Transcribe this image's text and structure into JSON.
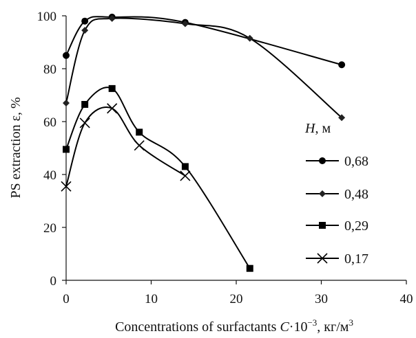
{
  "chart_data": {
    "type": "line",
    "xlabel_parts": {
      "pre": "Concentrations of surfactants ",
      "var": "C",
      "mid": "·10",
      "exp": "−3",
      "post": ", кг/м",
      "unit_exp": "3"
    },
    "ylabel": "PS extraction ε, %",
    "legend_title_var": "H",
    "legend_title_unit": ", м",
    "xlim": [
      0,
      40
    ],
    "ylim": [
      0,
      100
    ],
    "x_ticks": [
      0,
      10,
      20,
      30,
      40
    ],
    "y_ticks": [
      0,
      20,
      40,
      60,
      80,
      100
    ],
    "grid": false,
    "legend_position": "right",
    "series": [
      {
        "name": "0,68",
        "marker": "circle",
        "x": [
          0,
          2.2,
          5.4,
          14,
          32.4
        ],
        "y": [
          85,
          98,
          99.5,
          97.5,
          81.5
        ]
      },
      {
        "name": "0,48",
        "marker": "diamond",
        "x": [
          0,
          2.2,
          5.4,
          14,
          21.6,
          32.4
        ],
        "y": [
          67,
          94.5,
          99,
          97,
          91.5,
          61.5
        ]
      },
      {
        "name": "0,29",
        "marker": "square",
        "x": [
          0,
          2.2,
          5.4,
          8.6,
          14,
          21.6
        ],
        "y": [
          49.5,
          66.5,
          72.5,
          56,
          43,
          4.5
        ]
      },
      {
        "name": "0,17",
        "marker": "x",
        "x": [
          0,
          2.2,
          5.4,
          8.6,
          14
        ],
        "y": [
          35.5,
          59.5,
          65,
          51,
          39.5
        ]
      }
    ]
  }
}
